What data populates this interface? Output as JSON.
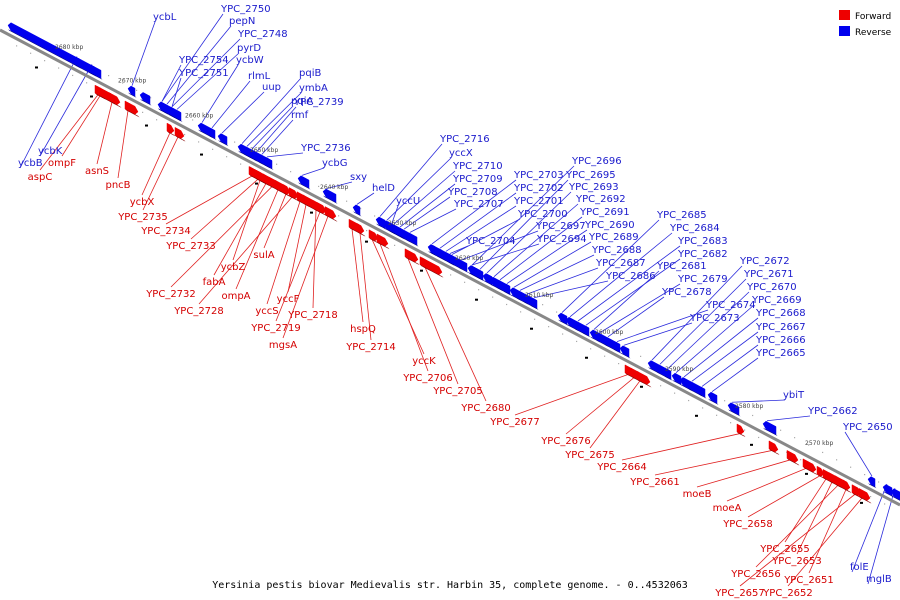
{
  "caption": "Yersinia pestis biovar Medievalis str. Harbin 35, complete genome. - 0..4532063",
  "legend": {
    "forward_label": "Forward",
    "reverse_label": "Reverse",
    "forward_color": "#ee0000",
    "reverse_color": "#0000ee"
  },
  "axis_color": "#888888",
  "kbp_ticks": [
    "2680 kbp",
    "2670 kbp",
    "2660 kbp",
    "2650 kbp",
    "2640 kbp",
    "2630 kbp",
    "2620 kbp",
    "2610 kbp",
    "2600 kbp",
    "2590 kbp",
    "2580 kbp",
    "2570 kbp"
  ],
  "reverse_genes": [
    "ycbL",
    "YPC_2750",
    "pepN",
    "YPC_2748",
    "pyrD",
    "YPC_2754",
    "YPC_2751",
    "ycbW",
    "rlmL",
    "uup",
    "pqiB",
    "ymbA",
    "pqiA",
    "YPC_2739",
    "rmf",
    "ycbK",
    "ycbB",
    "YPC_2736",
    "ycbG",
    "sxy",
    "helD",
    "YPC_2716",
    "yccX",
    "YPC_2710",
    "YPC_2709",
    "YPC_2708",
    "YPC_2707",
    "yccU",
    "YPC_2703",
    "YPC_2702",
    "YPC_2701",
    "YPC_2700",
    "YPC_2704",
    "YPC_2697",
    "YPC_2694",
    "YPC_2696",
    "YPC_2695",
    "YPC_2693",
    "YPC_2692",
    "YPC_2691",
    "YPC_2690",
    "YPC_2689",
    "YPC_2688",
    "YPC_2687",
    "YPC_2686",
    "YPC_2685",
    "YPC_2684",
    "YPC_2683",
    "YPC_2682",
    "YPC_2681",
    "YPC_2679",
    "YPC_2678",
    "YPC_2674",
    "YPC_2673",
    "YPC_2672",
    "YPC_2671",
    "YPC_2670",
    "YPC_2669",
    "YPC_2668",
    "YPC_2667",
    "YPC_2666",
    "YPC_2665",
    "ybiT",
    "YPC_2662",
    "YPC_2650",
    "folE",
    "mglB"
  ],
  "forward_genes": [
    "ompF",
    "aspC",
    "asnS",
    "pncB",
    "ycbX",
    "YPC_2735",
    "YPC_2734",
    "YPC_2733",
    "ycbZ",
    "fabA",
    "YPC_2732",
    "ompA",
    "sulA",
    "YPC_2728",
    "yccS",
    "yccF",
    "YPC_2718",
    "YPC_2719",
    "mgsA",
    "hspQ",
    "YPC_2714",
    "yccK",
    "YPC_2706",
    "YPC_2705",
    "YPC_2680",
    "YPC_2677",
    "YPC_2676",
    "YPC_2675",
    "YPC_2664",
    "YPC_2661",
    "moeB",
    "moeA",
    "YPC_2658",
    "YPC_2655",
    "YPC_2653",
    "YPC_2656",
    "YPC_2651",
    "YPC_2657",
    "YPC_2652"
  ]
}
